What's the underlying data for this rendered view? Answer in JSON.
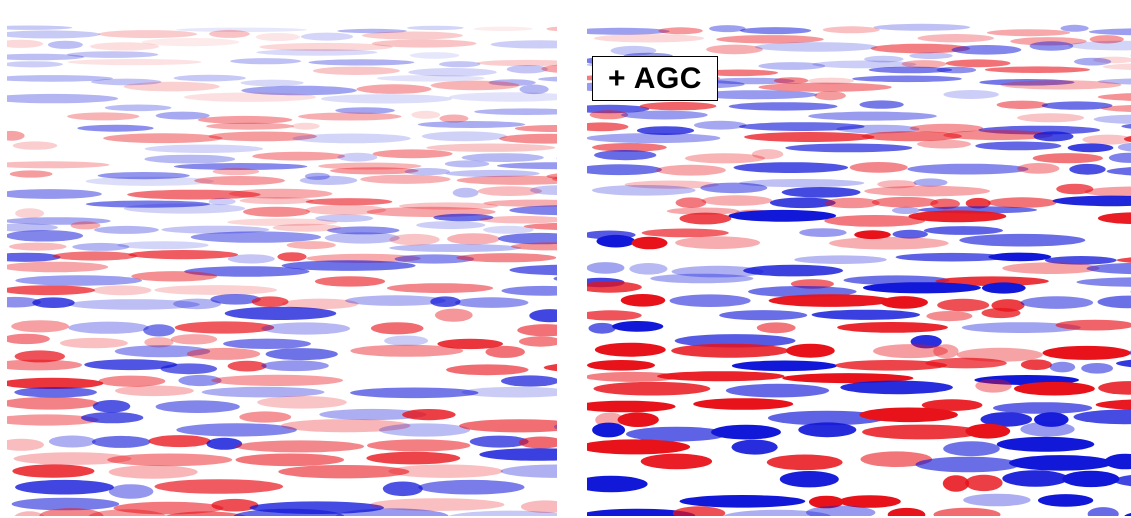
{
  "panels": [
    {
      "id": "left",
      "description_for_render": "seismic-section-before-agc",
      "colors": {
        "positive": "#e8121a",
        "negative": "#1218d8",
        "zero": "#ffffff"
      },
      "amplitude_gain": 0.85
    },
    {
      "id": "right",
      "label": "+ AGC",
      "colors": {
        "positive": "#e8121a",
        "negative": "#1218d8",
        "zero": "#ffffff"
      },
      "amplitude_gain": 1.35
    }
  ]
}
